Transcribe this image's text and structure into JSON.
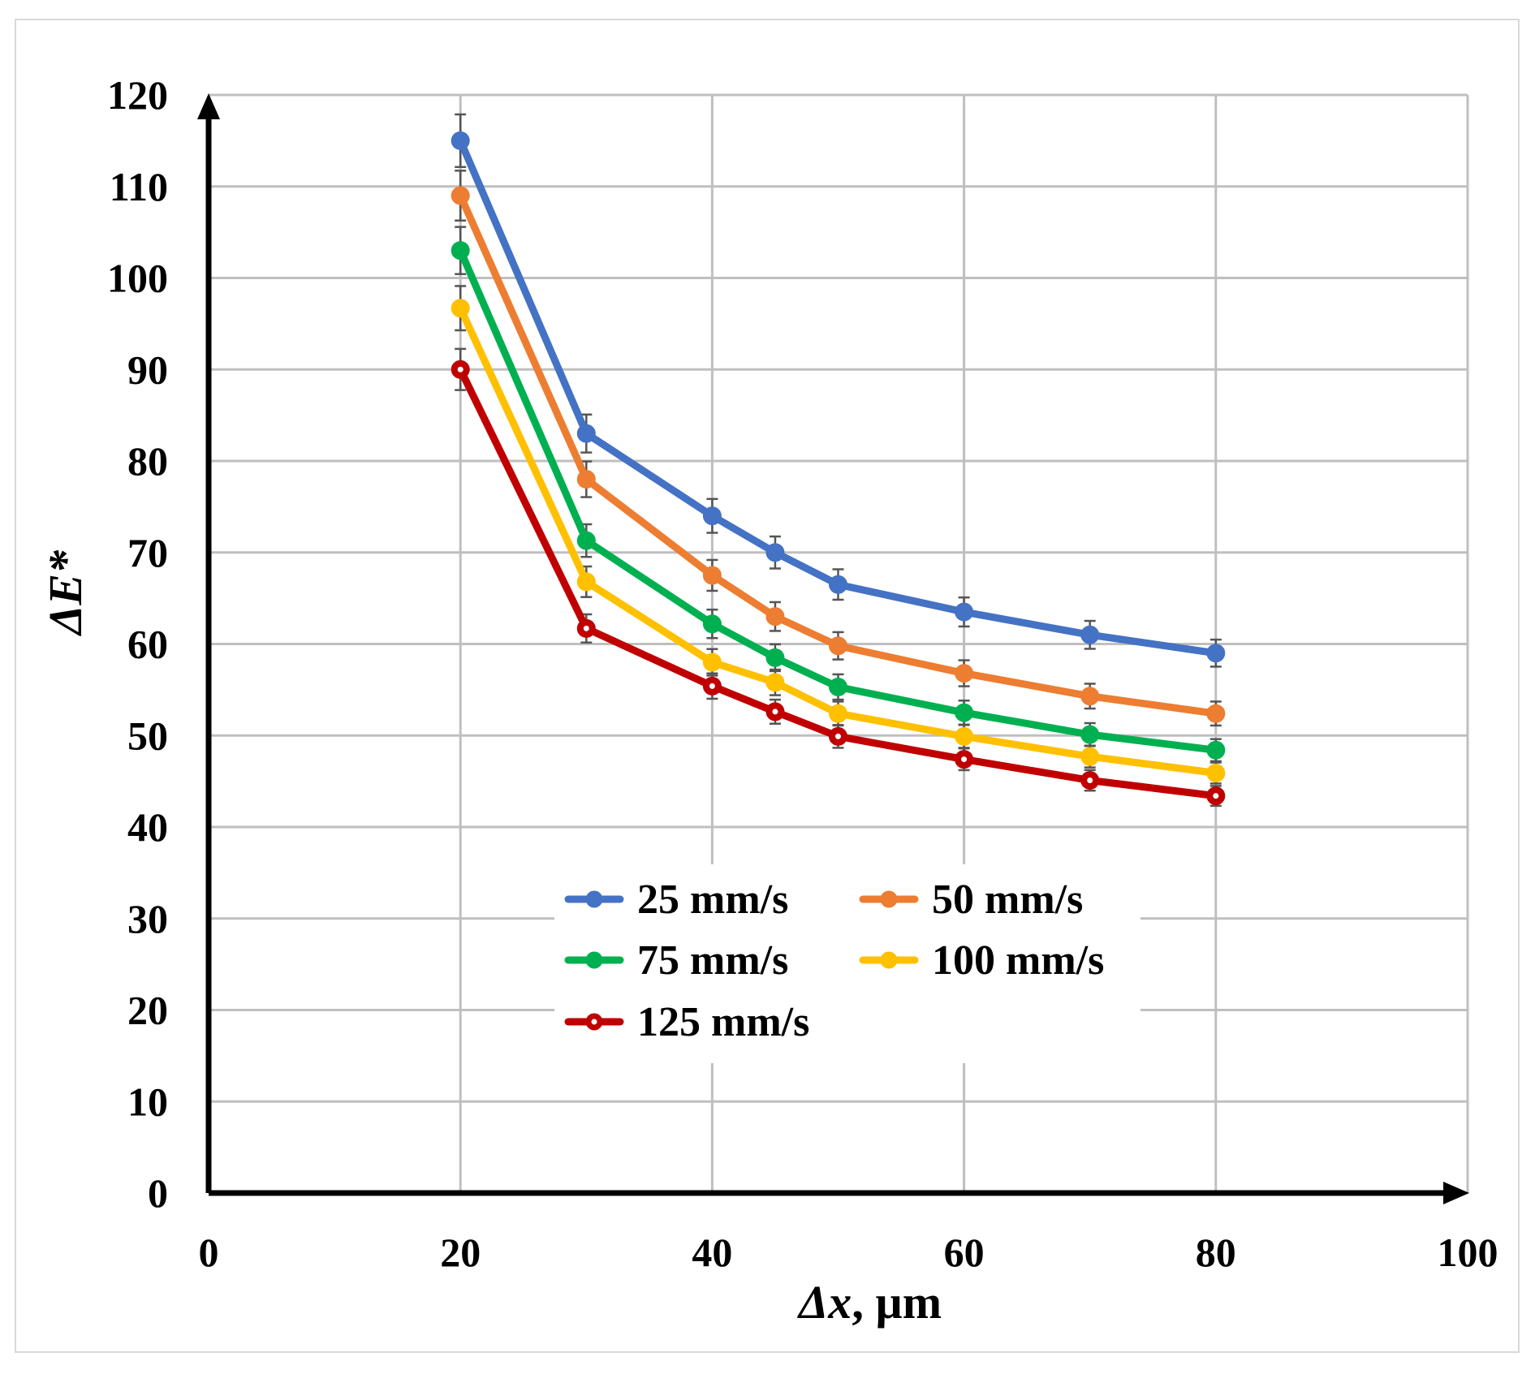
{
  "chart_data": {
    "type": "line",
    "xlabel_italic": "Δx",
    "xlabel_rest": ", µm",
    "ylabel": "ΔE*",
    "xlim": [
      0,
      100
    ],
    "ylim": [
      0,
      120
    ],
    "x_ticks": [
      "0",
      "20",
      "40",
      "60",
      "80",
      "100"
    ],
    "y_ticks": [
      "0",
      "10",
      "20",
      "30",
      "40",
      "50",
      "60",
      "70",
      "80",
      "90",
      "100",
      "110",
      "120"
    ],
    "grid": true,
    "legend_position": "center-bottom",
    "x": [
      20,
      30,
      40,
      45,
      50,
      60,
      70,
      80
    ],
    "series": [
      {
        "name": "25 mm/s",
        "color": "#4472C4",
        "values": [
          115.0,
          83.0,
          74.0,
          70.0,
          66.5,
          63.5,
          61.0,
          59.0
        ]
      },
      {
        "name": "50 mm/s",
        "color": "#ED7D31",
        "values": [
          109.0,
          78.0,
          67.5,
          63.0,
          59.8,
          56.8,
          54.3,
          52.4
        ]
      },
      {
        "name": "75 mm/s",
        "color": "#00B050",
        "values": [
          103.0,
          71.3,
          62.2,
          58.5,
          55.3,
          52.5,
          50.1,
          48.4
        ]
      },
      {
        "name": "100 mm/s",
        "color": "#FFC000",
        "values": [
          96.7,
          66.8,
          58.0,
          55.8,
          52.4,
          49.9,
          47.7,
          45.9
        ]
      },
      {
        "name": "125 mm/s",
        "color": "#C00000",
        "values": [
          90.0,
          61.7,
          55.4,
          52.6,
          49.9,
          47.4,
          45.1,
          43.4
        ]
      }
    ]
  }
}
